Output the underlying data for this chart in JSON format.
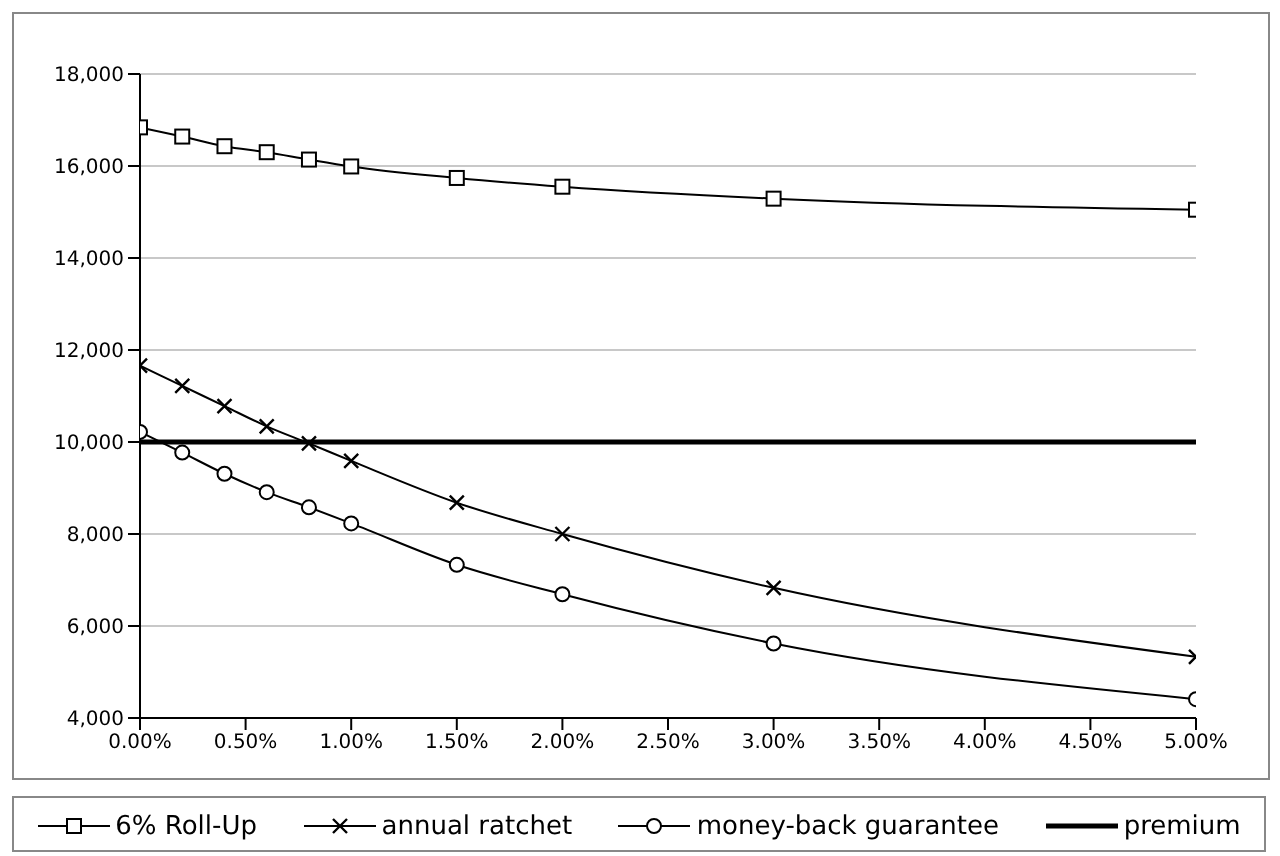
{
  "chart_data": {
    "type": "line",
    "x": [
      0,
      0.2,
      0.4,
      0.6,
      0.8,
      1.0,
      1.5,
      2.0,
      3.0,
      5.0
    ],
    "series": [
      {
        "name": "6% Roll-Up",
        "color": "#000000",
        "marker": "square",
        "values": [
          16840,
          16640,
          16430,
          16300,
          16140,
          15990,
          15740,
          15550,
          15290,
          15050
        ]
      },
      {
        "name": "annual ratchet",
        "color": "#000000",
        "marker": "cross",
        "values": [
          11660,
          11220,
          10780,
          10340,
          9970,
          9590,
          8680,
          8000,
          6830,
          5330
        ]
      },
      {
        "name": "money-back guarantee",
        "color": "#000000",
        "marker": "circle",
        "values": [
          10220,
          9770,
          9310,
          8910,
          8580,
          8230,
          7330,
          6690,
          5620,
          4410
        ]
      },
      {
        "name": "premium",
        "color": "#000000",
        "marker": "none",
        "x": [
          0,
          5
        ],
        "values": [
          10000,
          10000
        ]
      }
    ],
    "xlim": [
      0,
      5
    ],
    "xticks": [
      {
        "value": 0,
        "label": "0.00%"
      },
      {
        "value": 0.5,
        "label": "0.50%"
      },
      {
        "value": 1,
        "label": "1.00%"
      },
      {
        "value": 1.5,
        "label": "1.50%"
      },
      {
        "value": 2,
        "label": "2.00%"
      },
      {
        "value": 2.5,
        "label": "2.50%"
      },
      {
        "value": 3,
        "label": "3.00%"
      },
      {
        "value": 3.5,
        "label": "3.50%"
      },
      {
        "value": 4,
        "label": "4.00%"
      },
      {
        "value": 4.5,
        "label": "4.50%"
      },
      {
        "value": 5,
        "label": "5.00%"
      }
    ],
    "ylim": [
      4000,
      18000
    ],
    "yticks": [
      {
        "value": 4000,
        "label": "4,000"
      },
      {
        "value": 6000,
        "label": "6,000"
      },
      {
        "value": 8000,
        "label": "8,000"
      },
      {
        "value": 10000,
        "label": "10,000"
      },
      {
        "value": 12000,
        "label": "12,000"
      },
      {
        "value": 14000,
        "label": "14,000"
      },
      {
        "value": 16000,
        "label": "16,000"
      },
      {
        "value": 18000,
        "label": "18,000"
      }
    ],
    "grid": "y",
    "legend": "bottom"
  }
}
